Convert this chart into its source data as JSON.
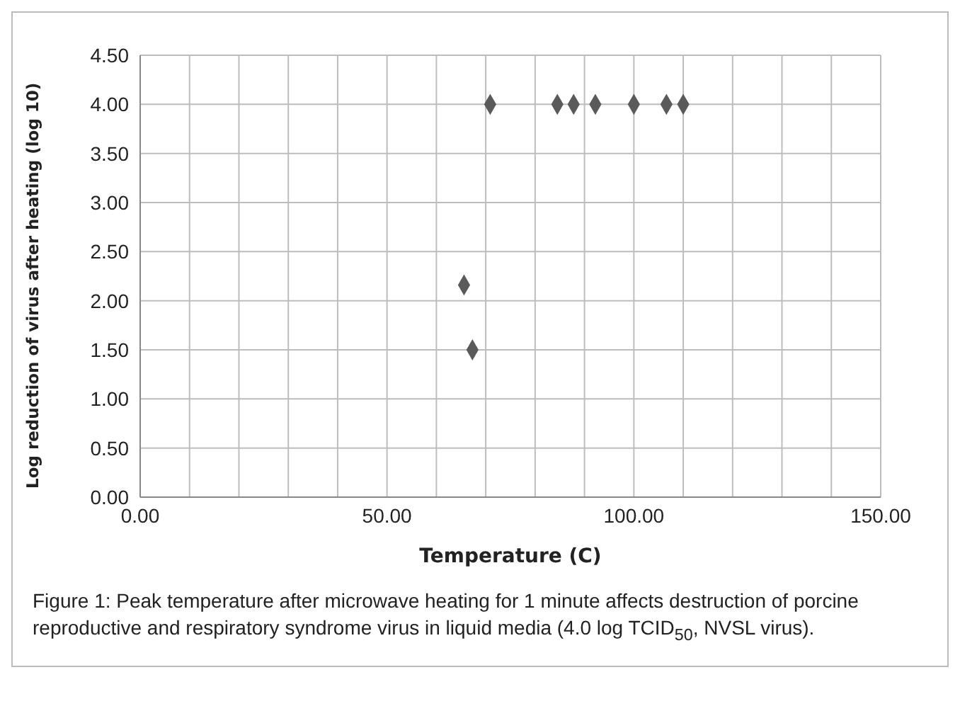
{
  "chart_data": {
    "type": "scatter",
    "xlabel": "Temperature (C)",
    "ylabel": "Log reduction of virus after heating (log 10)",
    "x": [
      65.6,
      67.3,
      70.9,
      84.5,
      87.8,
      92.2,
      100,
      106.6,
      110
    ],
    "values": [
      2.16,
      1.5,
      4,
      4,
      4,
      4,
      4,
      4,
      4
    ],
    "color": "#5a5a5a",
    "marker": "diamond",
    "grid": true,
    "legend": false,
    "xlim": [
      0,
      150
    ],
    "xticks": [
      {
        "value": 0,
        "label": "0.00"
      },
      {
        "value": 10,
        "label": null
      },
      {
        "value": 20,
        "label": null
      },
      {
        "value": 30,
        "label": null
      },
      {
        "value": 40,
        "label": null
      },
      {
        "value": 50,
        "label": "50.00"
      },
      {
        "value": 60,
        "label": null
      },
      {
        "value": 70,
        "label": null
      },
      {
        "value": 80,
        "label": null
      },
      {
        "value": 90,
        "label": null
      },
      {
        "value": 100,
        "label": "100.00"
      },
      {
        "value": 110,
        "label": null
      },
      {
        "value": 120,
        "label": null
      },
      {
        "value": 130,
        "label": null
      },
      {
        "value": 140,
        "label": null
      },
      {
        "value": 150,
        "label": "150.00"
      }
    ],
    "ylim": [
      0,
      4.5
    ],
    "yticks": [
      {
        "value": 0,
        "label": "0.00"
      },
      {
        "value": 0.5,
        "label": "0.50"
      },
      {
        "value": 1,
        "label": "1.00"
      },
      {
        "value": 1.5,
        "label": "1.50"
      },
      {
        "value": 2,
        "label": "2.00"
      },
      {
        "value": 2.5,
        "label": "2.50"
      },
      {
        "value": 3,
        "label": "3.00"
      },
      {
        "value": 3.5,
        "label": "3.50"
      },
      {
        "value": 4,
        "label": "4.00"
      },
      {
        "value": 4.5,
        "label": "4.50"
      }
    ],
    "annotations": [
      "Figure 1: Peak temperature after microwave heating for 1 minute affects destruction of porcine reproductive and respiratory syndrome virus in liquid media (4.0 log TCID$_{50}$, NVSL virus)."
    ]
  }
}
